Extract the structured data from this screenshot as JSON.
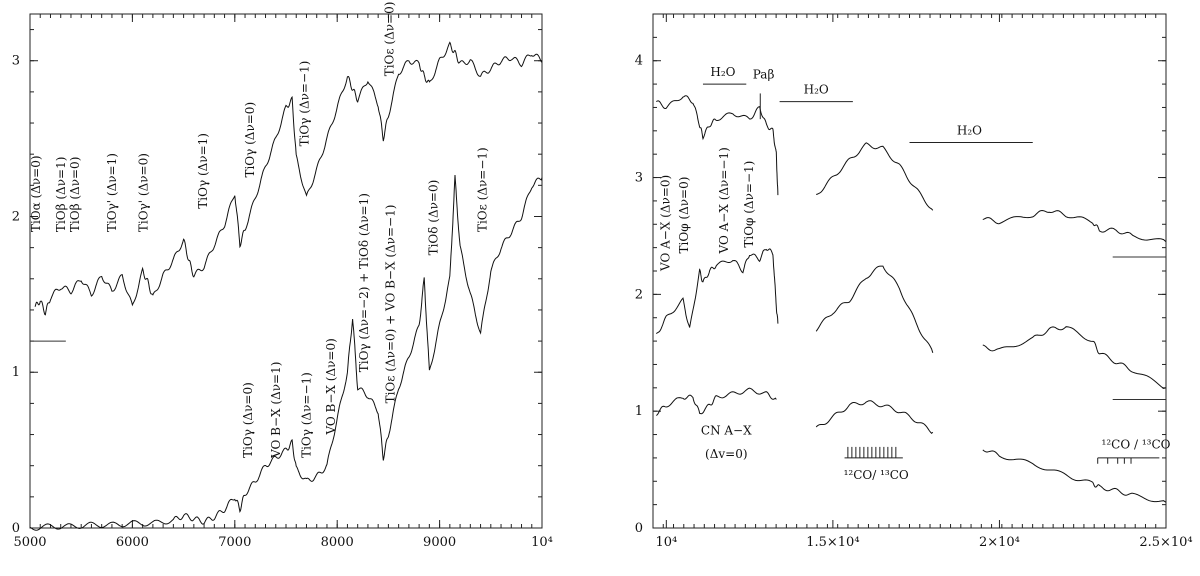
{
  "chart_data": [
    {
      "type": "line",
      "title": "",
      "xlabel": "",
      "ylabel": "",
      "xlim": [
        5000,
        10000
      ],
      "ylim": [
        0,
        3.3
      ],
      "x_ticks": [
        "5000",
        "6000",
        "7000",
        "8000",
        "9000",
        "10⁴"
      ],
      "x_tick_values": [
        5000,
        6000,
        7000,
        8000,
        9000,
        10000
      ],
      "y_ticks": [
        "0",
        "1",
        "2",
        "3"
      ],
      "y_tick_values": [
        0,
        1,
        2,
        3
      ],
      "grid": false,
      "series": [
        {
          "x": [
            5050,
            5100,
            5150,
            5200,
            5300,
            5400,
            5500,
            5600,
            5700,
            5800,
            5900,
            6000,
            6100,
            6150,
            6200,
            6300,
            6400,
            6500,
            6550,
            6600,
            6700,
            6800,
            6900,
            7000,
            7050,
            7100,
            7200,
            7300,
            7400,
            7500,
            7560,
            7600,
            7700,
            7800,
            7900,
            8000,
            8100,
            8150,
            8200,
            8300,
            8400,
            8450,
            8500,
            8600,
            8700,
            8800,
            8850,
            8900,
            9000,
            9100,
            9150,
            9200,
            9300,
            9400,
            9500,
            9600,
            9700,
            9800,
            9900,
            10000
          ],
          "y": [
            1.42,
            1.46,
            1.38,
            1.48,
            1.55,
            1.52,
            1.6,
            1.5,
            1.62,
            1.52,
            1.62,
            1.42,
            1.65,
            1.58,
            1.48,
            1.62,
            1.72,
            1.85,
            1.72,
            1.62,
            1.68,
            1.82,
            1.95,
            2.15,
            1.82,
            1.92,
            2.12,
            2.32,
            2.5,
            2.7,
            2.75,
            2.38,
            2.12,
            2.3,
            2.5,
            2.7,
            2.9,
            2.82,
            2.75,
            2.88,
            2.72,
            2.5,
            2.65,
            2.92,
            3.0,
            2.98,
            2.9,
            2.85,
            3.0,
            3.1,
            3.05,
            2.98,
            3.0,
            2.9,
            2.95,
            3.0,
            3.02,
            2.98,
            3.05,
            3.0
          ]
        },
        {
          "x": [
            5000,
            5200,
            5400,
            5600,
            5800,
            6000,
            6200,
            6400,
            6500,
            6600,
            6700,
            6800,
            6900,
            7000,
            7050,
            7100,
            7200,
            7300,
            7400,
            7500,
            7560,
            7600,
            7700,
            7800,
            7900,
            8000,
            8100,
            8150,
            8200,
            8300,
            8400,
            8450,
            8500,
            8600,
            8700,
            8800,
            8850,
            8900,
            9000,
            9100,
            9150,
            9200,
            9300,
            9400,
            9500,
            9600,
            9700,
            9800,
            9900,
            10000
          ],
          "y": [
            0.0,
            0.01,
            0.01,
            0.02,
            0.02,
            0.03,
            0.03,
            0.05,
            0.08,
            0.06,
            0.04,
            0.07,
            0.12,
            0.2,
            0.12,
            0.22,
            0.3,
            0.4,
            0.45,
            0.5,
            0.55,
            0.38,
            0.3,
            0.33,
            0.4,
            0.7,
            1.0,
            1.35,
            0.9,
            0.85,
            0.75,
            0.45,
            0.6,
            0.9,
            1.1,
            1.3,
            1.6,
            1.0,
            1.3,
            1.6,
            2.25,
            1.8,
            1.5,
            1.25,
            1.65,
            1.8,
            1.9,
            2.0,
            2.2,
            2.25
          ]
        }
      ],
      "reference_lines": [
        {
          "x": [
            5000,
            5350
          ],
          "y": 1.2
        }
      ],
      "annotations": [
        {
          "x": 5100,
          "y": 1.9,
          "text": "TiOα (Δν=0)"
        },
        {
          "x": 5340,
          "y": 1.9,
          "text": "TiOβ (Δν=1)"
        },
        {
          "x": 5480,
          "y": 1.9,
          "text": "TiOβ (Δν=0)"
        },
        {
          "x": 5840,
          "y": 1.9,
          "text": "TiOγ' (Δν=1)"
        },
        {
          "x": 6150,
          "y": 1.9,
          "text": "TiOγ' (Δν=0)"
        },
        {
          "x": 6730,
          "y": 2.05,
          "text": "TiOγ (Δν=1)"
        },
        {
          "x": 7190,
          "y": 2.25,
          "text": "TiOγ (Δν=0)"
        },
        {
          "x": 7720,
          "y": 2.45,
          "text": "TiOγ (Δν=−1)"
        },
        {
          "x": 8550,
          "y": 2.9,
          "text": "TiOε (Δν=0)"
        },
        {
          "x": 7170,
          "y": 0.45,
          "text": "TiOγ (Δν=0)"
        },
        {
          "x": 7440,
          "y": 0.45,
          "text": "VO B−X (Δν=1)"
        },
        {
          "x": 7740,
          "y": 0.45,
          "text": "TiOγ (Δν=−1)"
        },
        {
          "x": 7980,
          "y": 0.6,
          "text": "VO B−X (Δν=0)"
        },
        {
          "x": 8300,
          "y": 1.0,
          "text": "TiOγ (Δν=−2) + TiOδ (Δν=1)"
        },
        {
          "x": 8560,
          "y": 0.8,
          "text": "TiOε (Δν=0) + VO B−X (Δν=−1)"
        },
        {
          "x": 8980,
          "y": 1.75,
          "text": "TiOδ (Δν=0)"
        },
        {
          "x": 9460,
          "y": 1.9,
          "text": "TiOε (Δν=−1)"
        }
      ]
    },
    {
      "type": "line",
      "title": "",
      "xlabel": "",
      "ylabel": "",
      "xlim": [
        9600,
        25000
      ],
      "ylim": [
        0,
        4.4
      ],
      "x_ticks": [
        "10⁴",
        "1.5×10⁴",
        "2×10⁴",
        "2.5×10⁴"
      ],
      "x_tick_values": [
        10000,
        15000,
        20000,
        25000
      ],
      "y_ticks": [
        "0",
        "1",
        "2",
        "3",
        "4"
      ],
      "y_tick_values": [
        0,
        1,
        2,
        3,
        4
      ],
      "grid": false,
      "series": [
        {
          "x": [
            9700,
            10000,
            10500,
            10800,
            11000,
            11100,
            11300,
            11500,
            12000,
            12500,
            12800,
            13000,
            13200,
            13300,
            13350
          ],
          "y": [
            3.65,
            3.6,
            3.7,
            3.65,
            3.45,
            3.35,
            3.45,
            3.5,
            3.55,
            3.5,
            3.6,
            3.45,
            3.4,
            3.2,
            2.85
          ]
        },
        {
          "x": [
            14500,
            15000,
            15500,
            16000,
            16500,
            17000,
            17500,
            18000
          ],
          "y": [
            2.85,
            3.0,
            3.15,
            3.28,
            3.25,
            3.1,
            2.9,
            2.72
          ]
        },
        {
          "x": [
            19500,
            20000,
            21000,
            21500,
            22000,
            22800,
            23000,
            23500,
            24000,
            25000
          ],
          "y": [
            2.65,
            2.62,
            2.68,
            2.72,
            2.68,
            2.62,
            2.55,
            2.55,
            2.5,
            2.45
          ]
        },
        {
          "x": [
            9700,
            10000,
            10500,
            10700,
            11000,
            11100,
            11300,
            11500,
            12000,
            12300,
            12500,
            12800,
            13000,
            13200,
            13300,
            13350
          ],
          "y": [
            1.65,
            1.8,
            1.95,
            1.7,
            2.2,
            2.1,
            2.2,
            2.25,
            2.3,
            2.2,
            2.35,
            2.3,
            2.4,
            2.35,
            1.9,
            1.75
          ]
        },
        {
          "x": [
            14500,
            15000,
            15500,
            16000,
            16500,
            17000,
            17500,
            18000
          ],
          "y": [
            1.7,
            1.85,
            1.95,
            2.15,
            2.25,
            2.05,
            1.75,
            1.5
          ]
        },
        {
          "x": [
            19500,
            20000,
            21000,
            21500,
            22000,
            22800,
            23000,
            23500,
            24000,
            25000
          ],
          "y": [
            1.55,
            1.52,
            1.62,
            1.7,
            1.72,
            1.6,
            1.5,
            1.42,
            1.35,
            1.2
          ]
        },
        {
          "x": [
            9700,
            10000,
            10500,
            10800,
            11000,
            11300,
            11500,
            12000,
            12500,
            13000,
            13300
          ],
          "y": [
            0.98,
            1.05,
            1.12,
            1.12,
            0.98,
            1.05,
            1.12,
            1.15,
            1.18,
            1.15,
            1.1
          ]
        },
        {
          "x": [
            14500,
            15000,
            15500,
            16000,
            16500,
            17000,
            17500,
            18000
          ],
          "y": [
            0.85,
            0.95,
            1.05,
            1.08,
            1.05,
            1.0,
            0.92,
            0.82
          ]
        },
        {
          "x": [
            19500,
            20000,
            21000,
            22000,
            22800,
            23000,
            23500,
            24000,
            25000
          ],
          "y": [
            0.68,
            0.62,
            0.55,
            0.45,
            0.38,
            0.35,
            0.32,
            0.28,
            0.22
          ]
        }
      ],
      "reference_lines": [
        {
          "x": [
            23400,
            25000
          ],
          "y": 2.32
        },
        {
          "x": [
            23400,
            25000
          ],
          "y": 1.1
        }
      ],
      "feature_bars": [
        {
          "label": "H₂O",
          "x": [
            11100,
            12400
          ],
          "y": 3.8
        },
        {
          "label": "H₂O",
          "x": [
            13400,
            15600
          ],
          "y": 3.65
        },
        {
          "label": "H₂O",
          "x": [
            17300,
            21000
          ],
          "y": 3.3
        }
      ],
      "annotations": [
        {
          "x": 11700,
          "y": 3.87,
          "text": "H₂O"
        },
        {
          "x": 12920,
          "y": 3.85,
          "text": "Paβ"
        },
        {
          "x": 14500,
          "y": 3.72,
          "text": "H₂O"
        },
        {
          "x": 19100,
          "y": 3.37,
          "text": "H₂O"
        },
        {
          "x": 10100,
          "y": 2.2,
          "text": "VO A−X (Δν=0)"
        },
        {
          "x": 10650,
          "y": 2.35,
          "text": "TiOφ (Δν=0)"
        },
        {
          "x": 11850,
          "y": 2.35,
          "text": "VO A−X (Δν=−1)"
        },
        {
          "x": 12600,
          "y": 2.4,
          "text": "TiOφ (Δν=−1)"
        },
        {
          "x": 11800,
          "y": 0.8,
          "text": "CN A−X"
        },
        {
          "x": 11800,
          "y": 0.6,
          "text": "(Δv=0)"
        },
        {
          "x": 16300,
          "y": 0.42,
          "text": "¹²CO/ ¹³CO"
        },
        {
          "x": 24100,
          "y": 0.68,
          "text": "¹²CO / ¹³CO"
        }
      ]
    }
  ]
}
